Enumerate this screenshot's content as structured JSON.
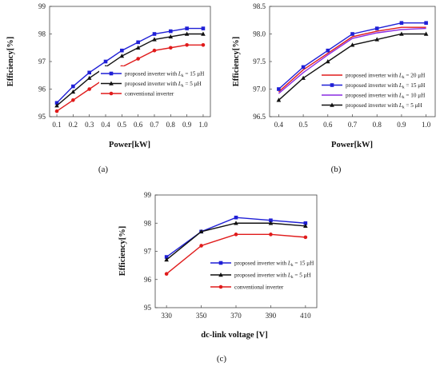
{
  "chart_data": [
    {
      "id": "a",
      "type": "line",
      "caption": "(a)",
      "xlabel": "Power[kW]",
      "ylabel": "Efficiency[%]",
      "x": [
        0.1,
        0.2,
        0.3,
        0.4,
        0.5,
        0.6,
        0.7,
        0.8,
        0.9,
        1.0
      ],
      "x_ticks": [
        "0.1",
        "0.2",
        "0.3",
        "0.4",
        "0.5",
        "0.6",
        "0.7",
        "0.8",
        "0.9",
        "1.0"
      ],
      "ylim": [
        95,
        99
      ],
      "y_ticks": [
        "95",
        "96",
        "97",
        "98",
        "99"
      ],
      "grid": false,
      "legend_position": "bottom-right",
      "series": [
        {
          "legend_prefix": "proposed inverter with ",
          "legend_sym": "L",
          "legend_sub": "k",
          "legend_suffix": " = 15 μH",
          "color": "#1f1fd6",
          "marker": "square",
          "values": [
            95.5,
            96.1,
            96.6,
            97.0,
            97.4,
            97.7,
            98.0,
            98.1,
            98.2,
            98.2
          ]
        },
        {
          "legend_prefix": "proposed inverter with ",
          "legend_sym": "L",
          "legend_sub": "k",
          "legend_suffix": " = 5 μH",
          "color": "#111111",
          "marker": "triangle",
          "values": [
            95.4,
            95.9,
            96.4,
            96.8,
            97.2,
            97.5,
            97.8,
            97.9,
            98.0,
            98.0
          ]
        },
        {
          "legend_prefix": "conventional inverter",
          "legend_sym": "",
          "legend_sub": "",
          "legend_suffix": "",
          "color": "#e01b1b",
          "marker": "circle",
          "values": [
            95.2,
            95.6,
            96.0,
            96.4,
            96.8,
            97.1,
            97.4,
            97.5,
            97.6,
            97.6
          ]
        }
      ]
    },
    {
      "id": "b",
      "type": "line",
      "caption": "(b)",
      "xlabel": "Power[kW]",
      "ylabel": "Efficiency[%]",
      "x": [
        0.4,
        0.5,
        0.6,
        0.7,
        0.8,
        0.9,
        1.0
      ],
      "x_ticks": [
        "0.4",
        "0.5",
        "0.6",
        "0.7",
        "0.8",
        "0.9",
        "1.0"
      ],
      "ylim": [
        96.5,
        98.5
      ],
      "y_ticks": [
        "96.5",
        "97.0",
        "97.5",
        "98.0",
        "98.5"
      ],
      "grid": false,
      "legend_position": "bottom-right",
      "series": [
        {
          "legend_prefix": "proposed inverter with ",
          "legend_sym": "L",
          "legend_sub": "k",
          "legend_suffix": " = 20 μH",
          "color": "#e01b1b",
          "marker": "none",
          "values": [
            96.95,
            97.35,
            97.65,
            97.95,
            98.05,
            98.12,
            98.12
          ]
        },
        {
          "legend_prefix": "proposed inverter with ",
          "legend_sym": "L",
          "legend_sub": "k",
          "legend_suffix": " = 15 μH",
          "color": "#1f1fd6",
          "marker": "square",
          "values": [
            97.0,
            97.4,
            97.7,
            98.0,
            98.1,
            98.2,
            98.2
          ]
        },
        {
          "legend_prefix": "proposed inverter with ",
          "legend_sym": "L",
          "legend_sub": "k",
          "legend_suffix": " = 10 μH",
          "color": "#8a2be2",
          "marker": "none",
          "values": [
            96.92,
            97.3,
            97.62,
            97.92,
            98.02,
            98.08,
            98.1
          ]
        },
        {
          "legend_prefix": "proposed inverter with ",
          "legend_sym": "L",
          "legend_sub": "k",
          "legend_suffix": " = 5 μH",
          "color": "#111111",
          "marker": "triangle",
          "values": [
            96.8,
            97.2,
            97.5,
            97.8,
            97.9,
            98.0,
            98.0
          ]
        }
      ]
    },
    {
      "id": "c",
      "type": "line",
      "caption": "(c)",
      "xlabel": "dc-link voltage [V]",
      "ylabel": "Efficiency[%]",
      "x": [
        330,
        350,
        370,
        390,
        410
      ],
      "x_ticks": [
        "330",
        "350",
        "370",
        "390",
        "410"
      ],
      "ylim": [
        95,
        99
      ],
      "y_ticks": [
        "95",
        "96",
        "97",
        "98",
        "99"
      ],
      "grid": false,
      "legend_position": "bottom-right",
      "series": [
        {
          "legend_prefix": "proposed inverter with ",
          "legend_sym": "L",
          "legend_sub": "k",
          "legend_suffix": " = 15 μH",
          "color": "#1f1fd6",
          "marker": "square",
          "values": [
            96.8,
            97.7,
            98.2,
            98.1,
            98.0
          ]
        },
        {
          "legend_prefix": "proposed inverter with ",
          "legend_sym": "L",
          "legend_sub": "k",
          "legend_suffix": " = 5 μH",
          "color": "#111111",
          "marker": "triangle",
          "values": [
            96.7,
            97.7,
            98.0,
            98.0,
            97.9
          ]
        },
        {
          "legend_prefix": "conventional inverter",
          "legend_sym": "",
          "legend_sub": "",
          "legend_suffix": "",
          "color": "#e01b1b",
          "marker": "circle",
          "values": [
            96.2,
            97.2,
            97.6,
            97.6,
            97.5
          ]
        }
      ]
    }
  ]
}
